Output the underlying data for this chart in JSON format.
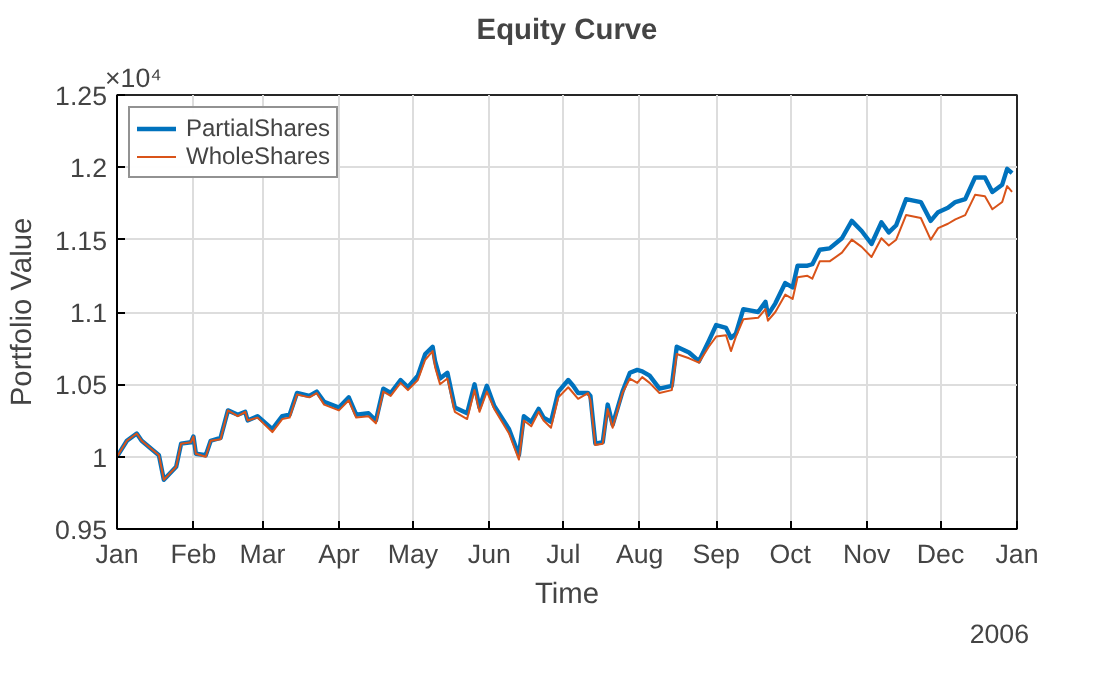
{
  "chart_data": {
    "type": "line",
    "title": "Equity Curve",
    "xlabel": "Time",
    "ylabel": "Portfolio Value",
    "annotations": [
      "×10⁴",
      "2006"
    ],
    "x": [
      "2006-01-01",
      "2006-01-05",
      "2006-01-09",
      "2006-01-11",
      "2006-01-18",
      "2006-01-20",
      "2006-01-25",
      "2006-01-27",
      "2006-01-31",
      "2006-02-01",
      "2006-02-02",
      "2006-02-06",
      "2006-02-08",
      "2006-02-12",
      "2006-02-15",
      "2006-02-19",
      "2006-02-22",
      "2006-02-23",
      "2006-02-27",
      "2006-03-05",
      "2006-03-09",
      "2006-03-12",
      "2006-03-15",
      "2006-03-20",
      "2006-03-23",
      "2006-03-26",
      "2006-04-01",
      "2006-04-05",
      "2006-04-08",
      "2006-04-13",
      "2006-04-16",
      "2006-04-19",
      "2006-04-22",
      "2006-04-26",
      "2006-04-29",
      "2006-05-03",
      "2006-05-06",
      "2006-05-09",
      "2006-05-10",
      "2006-05-12",
      "2006-05-15",
      "2006-05-18",
      "2006-05-23",
      "2006-05-26",
      "2006-05-28",
      "2006-05-31",
      "2006-06-03",
      "2006-06-09",
      "2006-06-13",
      "2006-06-15",
      "2006-06-18",
      "2006-06-21",
      "2006-06-23",
      "2006-06-26",
      "2006-06-29",
      "2006-07-03",
      "2006-07-05",
      "2006-07-07",
      "2006-07-11",
      "2006-07-12",
      "2006-07-14",
      "2006-07-17",
      "2006-07-19",
      "2006-07-21",
      "2006-07-25",
      "2006-07-28",
      "2006-07-31",
      "2006-08-02",
      "2006-08-05",
      "2006-08-09",
      "2006-08-14",
      "2006-08-16",
      "2006-08-21",
      "2006-08-25",
      "2006-08-29",
      "2006-09-01",
      "2006-09-05",
      "2006-09-07",
      "2006-09-09",
      "2006-09-12",
      "2006-09-18",
      "2006-09-21",
      "2006-09-22",
      "2006-09-25",
      "2006-09-29",
      "2006-10-02",
      "2006-10-04",
      "2006-10-08",
      "2006-10-10",
      "2006-10-13",
      "2006-10-17",
      "2006-10-22",
      "2006-10-26",
      "2006-10-30",
      "2006-11-03",
      "2006-11-07",
      "2006-11-10",
      "2006-11-13",
      "2006-11-17",
      "2006-11-23",
      "2006-11-27",
      "2006-11-30",
      "2006-12-04",
      "2006-12-07",
      "2006-12-11",
      "2006-12-15",
      "2006-12-19",
      "2006-12-22",
      "2006-12-26",
      "2006-12-28",
      "2006-12-30"
    ],
    "series": [
      {
        "name": "PartialShares",
        "color": "#0072bd",
        "values": [
          1.0,
          1.011,
          1.016,
          1.011,
          1.001,
          0.984,
          0.993,
          1.009,
          1.01,
          1.014,
          1.002,
          1.001,
          1.011,
          1.013,
          1.032,
          1.029,
          1.031,
          1.025,
          1.028,
          1.019,
          1.028,
          1.029,
          1.044,
          1.042,
          1.045,
          1.038,
          1.034,
          1.041,
          1.029,
          1.03,
          1.025,
          1.047,
          1.044,
          1.053,
          1.048,
          1.056,
          1.071,
          1.076,
          1.066,
          1.054,
          1.058,
          1.034,
          1.03,
          1.05,
          1.034,
          1.049,
          1.035,
          1.019,
          1.001,
          1.028,
          1.024,
          1.033,
          1.027,
          1.024,
          1.045,
          1.053,
          1.049,
          1.044,
          1.044,
          1.042,
          1.009,
          1.01,
          1.036,
          1.022,
          1.045,
          1.058,
          1.06,
          1.059,
          1.056,
          1.047,
          1.049,
          1.076,
          1.072,
          1.066,
          1.08,
          1.091,
          1.089,
          1.082,
          1.085,
          1.102,
          1.1,
          1.107,
          1.098,
          1.106,
          1.12,
          1.117,
          1.132,
          1.132,
          1.133,
          1.143,
          1.144,
          1.151,
          1.163,
          1.156,
          1.147,
          1.162,
          1.155,
          1.16,
          1.178,
          1.176,
          1.163,
          1.169,
          1.172,
          1.176,
          1.178,
          1.193,
          1.193,
          1.183,
          1.188,
          1.199,
          1.196
        ]
      },
      {
        "name": "WholeShares",
        "color": "#d95319",
        "values": [
          1.0,
          1.011,
          1.016,
          1.011,
          1.001,
          0.984,
          0.993,
          1.009,
          1.01,
          1.014,
          1.002,
          1.0,
          1.011,
          1.012,
          1.032,
          1.028,
          1.031,
          1.025,
          1.027,
          1.017,
          1.026,
          1.027,
          1.043,
          1.041,
          1.044,
          1.036,
          1.032,
          1.039,
          1.027,
          1.028,
          1.023,
          1.045,
          1.042,
          1.051,
          1.046,
          1.053,
          1.067,
          1.073,
          1.062,
          1.05,
          1.054,
          1.031,
          1.026,
          1.046,
          1.031,
          1.045,
          1.033,
          1.016,
          0.998,
          1.025,
          1.021,
          1.031,
          1.025,
          1.02,
          1.041,
          1.048,
          1.044,
          1.04,
          1.044,
          1.039,
          1.008,
          1.009,
          1.033,
          1.02,
          1.044,
          1.054,
          1.051,
          1.055,
          1.051,
          1.044,
          1.046,
          1.071,
          1.068,
          1.065,
          1.076,
          1.083,
          1.084,
          1.073,
          1.083,
          1.095,
          1.096,
          1.102,
          1.094,
          1.1,
          1.112,
          1.109,
          1.124,
          1.125,
          1.123,
          1.135,
          1.135,
          1.141,
          1.15,
          1.145,
          1.138,
          1.151,
          1.146,
          1.15,
          1.167,
          1.165,
          1.15,
          1.158,
          1.161,
          1.164,
          1.167,
          1.181,
          1.18,
          1.171,
          1.176,
          1.187,
          1.183
        ]
      }
    ],
    "xlim": [
      "2006-01-01",
      "2007-01-01"
    ],
    "xticks": [
      {
        "value": "2006-01-01",
        "label": "Jan"
      },
      {
        "value": "2006-02-01",
        "label": "Feb"
      },
      {
        "value": "2006-03-01",
        "label": "Mar"
      },
      {
        "value": "2006-04-01",
        "label": "Apr"
      },
      {
        "value": "2006-05-01",
        "label": "May"
      },
      {
        "value": "2006-06-01",
        "label": "Jun"
      },
      {
        "value": "2006-07-01",
        "label": "Jul"
      },
      {
        "value": "2006-08-01",
        "label": "Aug"
      },
      {
        "value": "2006-09-01",
        "label": "Sep"
      },
      {
        "value": "2006-10-01",
        "label": "Oct"
      },
      {
        "value": "2006-11-01",
        "label": "Nov"
      },
      {
        "value": "2006-12-01",
        "label": "Dec"
      },
      {
        "value": "2007-01-01",
        "label": "Jan"
      }
    ],
    "ylim": [
      0.95,
      1.25
    ],
    "yticks": [
      0.95,
      1,
      1.05,
      1.1,
      1.15,
      1.2,
      1.25
    ],
    "grid": true,
    "legend": "top left",
    "line_style": "solid",
    "marker": "none"
  }
}
